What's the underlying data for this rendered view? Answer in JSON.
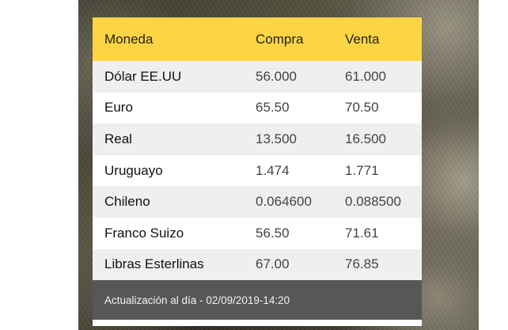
{
  "table": {
    "headers": {
      "currency": "Moneda",
      "buy": "Compra",
      "sell": "Venta"
    },
    "rows": [
      {
        "currency": "Dólar EE.UU",
        "buy": "56.000",
        "sell": "61.000"
      },
      {
        "currency": "Euro",
        "buy": "65.50",
        "sell": "70.50"
      },
      {
        "currency": "Real",
        "buy": "13.500",
        "sell": "16.500"
      },
      {
        "currency": "Uruguayo",
        "buy": "1.474",
        "sell": "1.771"
      },
      {
        "currency": "Chileno",
        "buy": "0.064600",
        "sell": "0.088500"
      },
      {
        "currency": "Franco Suizo",
        "buy": "56.50",
        "sell": "71.61"
      },
      {
        "currency": "Libras Esterlinas",
        "buy": "67.00",
        "sell": "76.85"
      }
    ]
  },
  "footer": {
    "update_text": "Actualización al día - 02/09/2019-14:20"
  },
  "colors": {
    "header_bg": "#fdd444",
    "row_alt_bg": "#efefef",
    "footer_bg": "#575757"
  }
}
